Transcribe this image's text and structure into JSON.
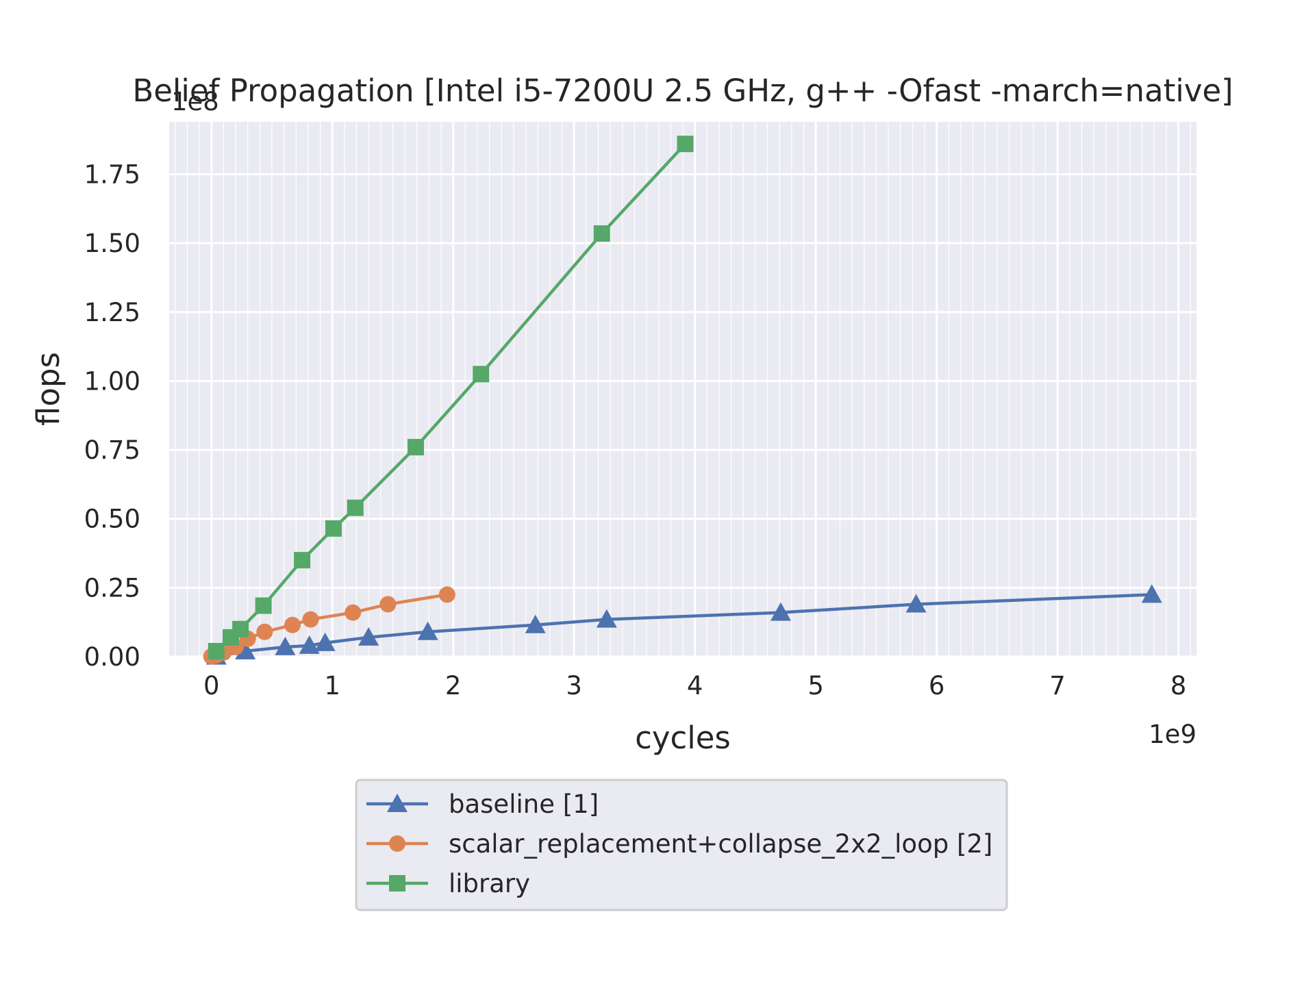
{
  "chart_data": {
    "type": "line",
    "title": "Belief Propagation [Intel i5-7200U 2.5 GHz, g++ -Ofast -march=native]",
    "xlabel": "cycles",
    "ylabel": "flops",
    "x_offset_label": "1e9",
    "y_offset_label": "1e8",
    "xlim": [
      -0.35,
      8.15
    ],
    "ylim": [
      0,
      1.94
    ],
    "x_unit_multiplier": 1000000000,
    "y_unit_multiplier": 100000000,
    "xticks": [
      0,
      1,
      2,
      3,
      4,
      5,
      6,
      7,
      8
    ],
    "xtick_labels": [
      "0",
      "1",
      "2",
      "3",
      "4",
      "5",
      "6",
      "7",
      "8"
    ],
    "yticks": [
      0,
      0.25,
      0.5,
      0.75,
      1.0,
      1.25,
      1.5,
      1.75
    ],
    "ytick_labels": [
      "0.00",
      "0.25",
      "0.50",
      "0.75",
      "1.00",
      "1.25",
      "1.50",
      "1.75"
    ],
    "grid": true,
    "minor_grid": true,
    "legend_position": "below plot, centered",
    "background_color": "#EAEAF2",
    "series": [
      {
        "name": "baseline [1]",
        "color": "#4C72B0",
        "marker": "triangle",
        "x": [
          0.04,
          0.28,
          0.61,
          0.81,
          0.94,
          1.3,
          1.79,
          2.68,
          3.27,
          4.71,
          5.83,
          7.78
        ],
        "y": [
          0.001,
          0.02,
          0.035,
          0.04,
          0.05,
          0.07,
          0.09,
          0.115,
          0.135,
          0.16,
          0.19,
          0.225
        ]
      },
      {
        "name": "scalar_replacement+collapse_2x2_loop [2]",
        "color": "#DD8452",
        "marker": "circle",
        "x": [
          0.0,
          0.04,
          0.1,
          0.2,
          0.3,
          0.44,
          0.67,
          0.82,
          1.17,
          1.46,
          1.95
        ],
        "y": [
          0.001,
          0.005,
          0.015,
          0.035,
          0.065,
          0.09,
          0.115,
          0.135,
          0.16,
          0.19,
          0.225
        ]
      },
      {
        "name": "library",
        "color": "#55A868",
        "marker": "square",
        "x": [
          0.04,
          0.16,
          0.24,
          0.43,
          0.75,
          1.01,
          1.19,
          1.69,
          2.23,
          3.23,
          3.92
        ],
        "y": [
          0.02,
          0.07,
          0.1,
          0.185,
          0.35,
          0.465,
          0.54,
          0.76,
          1.025,
          1.535,
          1.86
        ]
      }
    ]
  }
}
